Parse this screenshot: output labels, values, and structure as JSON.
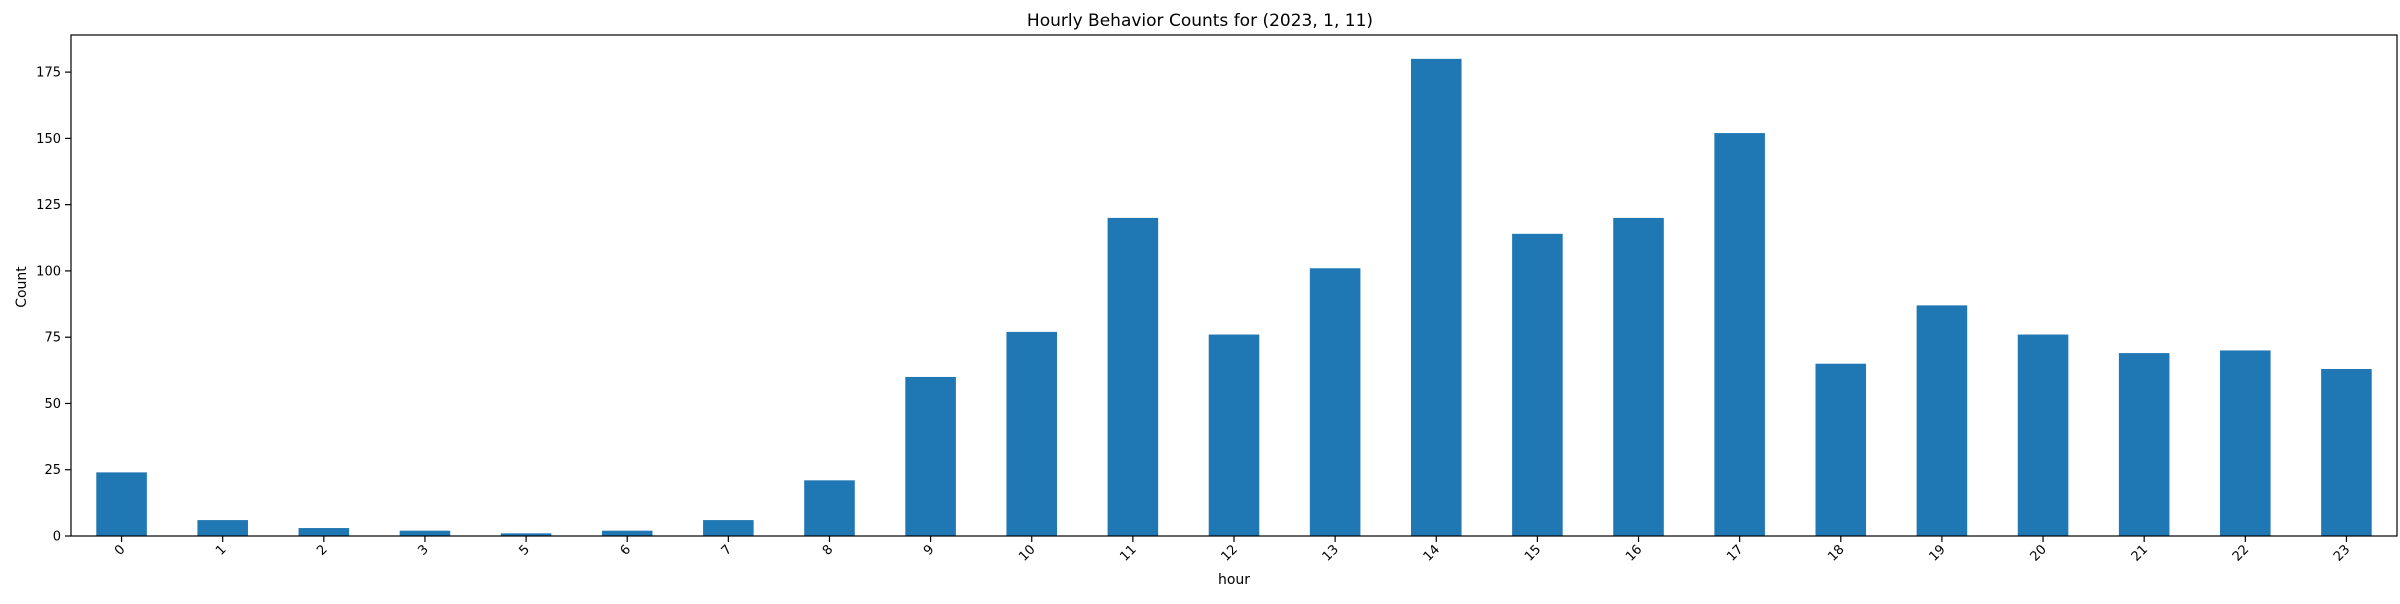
{
  "chart_data": {
    "type": "bar",
    "title": "Hourly Behavior Counts for (2023, 1, 11)",
    "xlabel": "hour",
    "ylabel": "Count",
    "categories": [
      "0",
      "1",
      "2",
      "3",
      "5",
      "6",
      "7",
      "8",
      "9",
      "10",
      "11",
      "12",
      "13",
      "14",
      "15",
      "16",
      "17",
      "18",
      "19",
      "20",
      "21",
      "22",
      "23"
    ],
    "values": [
      24,
      6,
      3,
      2,
      1,
      2,
      6,
      21,
      60,
      77,
      120,
      76,
      101,
      180,
      114,
      120,
      152,
      65,
      87,
      76,
      69,
      70,
      63
    ],
    "ylim": [
      0,
      189
    ],
    "yticks": [
      0,
      25,
      50,
      75,
      100,
      125,
      150,
      175
    ],
    "x_tick_rotation": 45,
    "grid": false,
    "legend": "none",
    "bar_color": "#1f77b4"
  }
}
